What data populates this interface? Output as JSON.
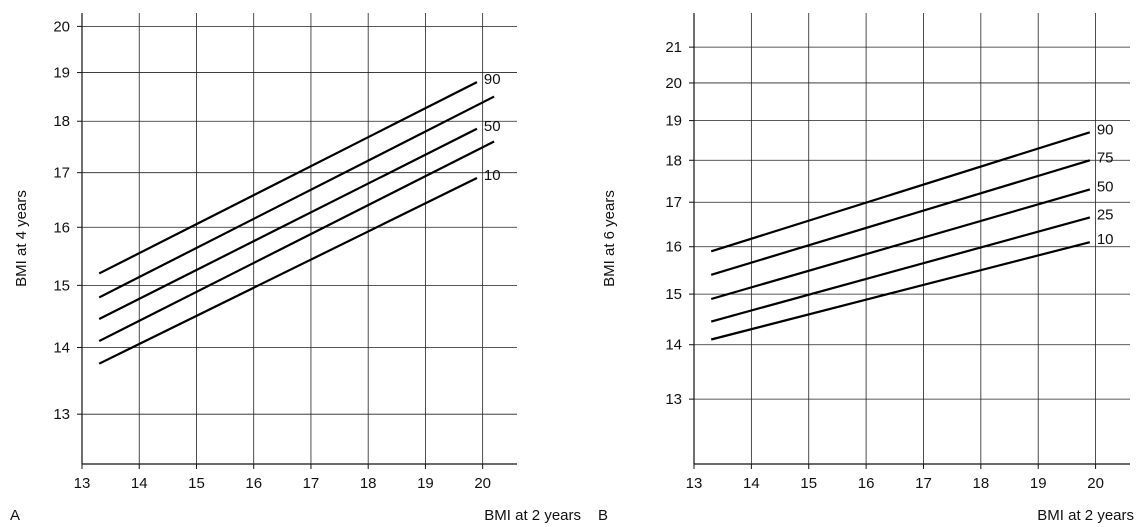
{
  "chart_data": [
    {
      "panel": "A",
      "type": "line",
      "xlabel": "BMI at 2 years",
      "ylabel": "BMI at 4 years",
      "xlim": [
        13,
        20.6
      ],
      "ylim": [
        12.3,
        20.3
      ],
      "y_scale": "log",
      "grid": true,
      "x_ticks": [
        13,
        14,
        15,
        16,
        17,
        18,
        19,
        20
      ],
      "y_ticks": [
        13,
        14,
        15,
        16,
        17,
        18,
        19,
        20
      ],
      "series": [
        {
          "name": "90",
          "x": [
            13.3,
            19.9
          ],
          "y": [
            15.2,
            18.8
          ]
        },
        {
          "name": "",
          "x": [
            13.3,
            20.2
          ],
          "y": [
            14.8,
            18.5
          ]
        },
        {
          "name": "50",
          "x": [
            13.3,
            19.9
          ],
          "y": [
            14.45,
            17.85
          ]
        },
        {
          "name": "",
          "x": [
            13.3,
            20.2
          ],
          "y": [
            14.1,
            17.6
          ]
        },
        {
          "name": "10",
          "x": [
            13.3,
            19.9
          ],
          "y": [
            13.75,
            16.9
          ]
        }
      ]
    },
    {
      "panel": "B",
      "type": "line",
      "xlabel": "BMI at 2 years",
      "ylabel": "BMI at 6 years",
      "xlim": [
        13,
        20.6
      ],
      "ylim": [
        11.9,
        22.0
      ],
      "y_scale": "log",
      "grid": true,
      "x_ticks": [
        13,
        14,
        15,
        16,
        17,
        18,
        19,
        20
      ],
      "y_ticks": [
        13,
        14,
        15,
        16,
        17,
        18,
        19,
        20,
        21
      ],
      "series": [
        {
          "name": "90",
          "x": [
            13.3,
            19.9
          ],
          "y": [
            15.9,
            18.7
          ]
        },
        {
          "name": "75",
          "x": [
            13.3,
            19.9
          ],
          "y": [
            15.4,
            18.0
          ]
        },
        {
          "name": "50",
          "x": [
            13.3,
            19.9
          ],
          "y": [
            14.9,
            17.3
          ]
        },
        {
          "name": "25",
          "x": [
            13.3,
            19.9
          ],
          "y": [
            14.45,
            16.65
          ]
        },
        {
          "name": "10",
          "x": [
            13.3,
            19.9
          ],
          "y": [
            14.1,
            16.1
          ]
        }
      ]
    }
  ]
}
